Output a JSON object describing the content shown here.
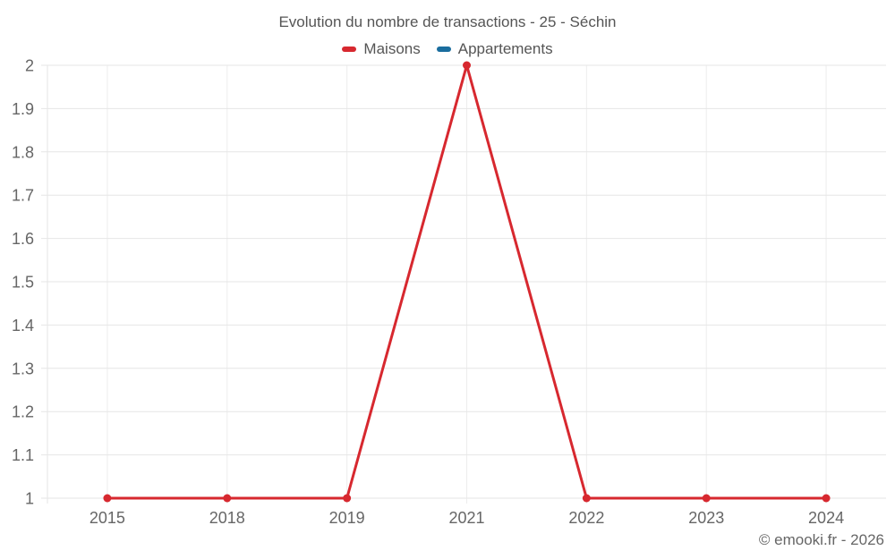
{
  "title": "Evolution du nombre de transactions - 25 - Séchin",
  "footer": "© emooki.fr - 2026",
  "legend": {
    "items": [
      {
        "label": "Maisons",
        "color": "#d7282f"
      },
      {
        "label": "Appartements",
        "color": "#1a6d9e"
      }
    ]
  },
  "chart_data": {
    "type": "line",
    "title": "Evolution du nombre de transactions - 25 - Séchin",
    "categories": [
      "2015",
      "2018",
      "2019",
      "2021",
      "2022",
      "2023",
      "2024"
    ],
    "series": [
      {
        "name": "Maisons",
        "color": "#d7282f",
        "values": [
          1,
          1,
          1,
          2,
          1,
          1,
          1
        ]
      },
      {
        "name": "Appartements",
        "color": "#1a6d9e",
        "values": []
      }
    ],
    "xlabel": "",
    "ylabel": "",
    "ylim": [
      1,
      2
    ],
    "yticks": [
      "1",
      "1.1",
      "1.2",
      "1.3",
      "1.4",
      "1.5",
      "1.6",
      "1.7",
      "1.8",
      "1.9",
      "2"
    ],
    "grid": true,
    "legend_position": "top"
  }
}
